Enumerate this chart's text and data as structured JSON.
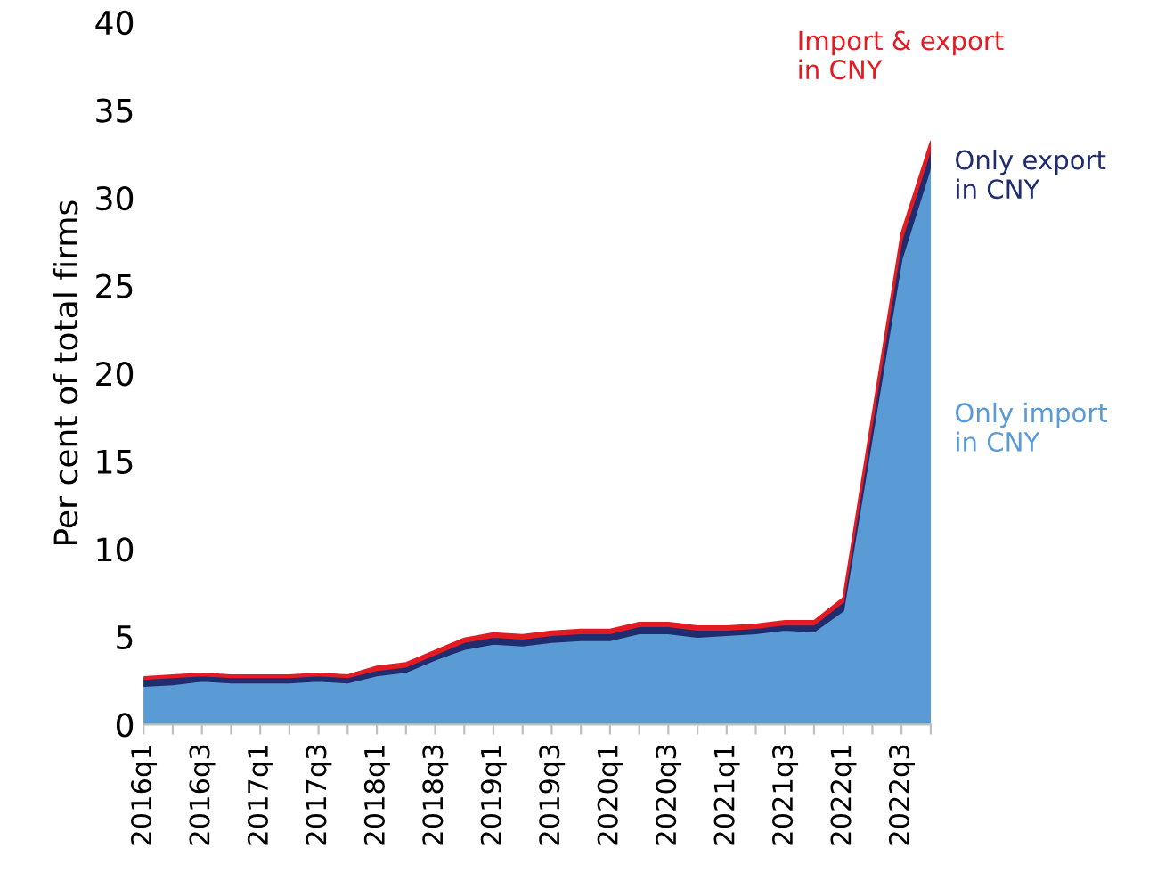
{
  "chart_data": {
    "type": "area",
    "stacked": true,
    "ylabel": "Per cent of total firms",
    "categories": [
      "2016q1",
      null,
      "2016q3",
      null,
      "2017q1",
      null,
      "2017q3",
      null,
      "2018q1",
      null,
      "2018q3",
      null,
      "2019q1",
      null,
      "2019q3",
      null,
      "2020q1",
      null,
      "2020q3",
      null,
      "2021q1",
      null,
      "2021q3",
      null,
      "2022q1",
      null,
      "2022q3",
      null
    ],
    "series": [
      {
        "name": "Only import\nin CNY",
        "color": "#5b9bd5",
        "values": [
          2.2,
          2.3,
          2.5,
          2.4,
          2.4,
          2.4,
          2.5,
          2.4,
          2.8,
          3.0,
          3.7,
          4.3,
          4.6,
          4.5,
          4.7,
          4.8,
          4.8,
          5.2,
          5.2,
          5.0,
          5.1,
          5.2,
          5.4,
          5.3,
          6.5,
          16.5,
          26.5,
          31.8
        ]
      },
      {
        "name": "Only export\nin CNY",
        "color": "#1f2d6e",
        "values": [
          0.4,
          0.4,
          0.3,
          0.3,
          0.3,
          0.3,
          0.3,
          0.3,
          0.3,
          0.3,
          0.3,
          0.4,
          0.4,
          0.4,
          0.4,
          0.4,
          0.4,
          0.4,
          0.4,
          0.4,
          0.3,
          0.3,
          0.3,
          0.4,
          0.5,
          0.8,
          1.1,
          1.0
        ]
      },
      {
        "name": "Import & export\nin CNY",
        "color": "#e31b23",
        "values": [
          0.1,
          0.1,
          0.1,
          0.1,
          0.1,
          0.1,
          0.1,
          0.1,
          0.2,
          0.2,
          0.2,
          0.2,
          0.2,
          0.2,
          0.2,
          0.2,
          0.2,
          0.2,
          0.2,
          0.2,
          0.2,
          0.2,
          0.2,
          0.2,
          0.2,
          0.3,
          0.4,
          0.4
        ]
      }
    ],
    "ylim": [
      0,
      40
    ],
    "yticks": [
      0,
      5,
      10,
      15,
      20,
      25,
      30,
      35,
      40
    ],
    "grid": false,
    "legend": false
  }
}
